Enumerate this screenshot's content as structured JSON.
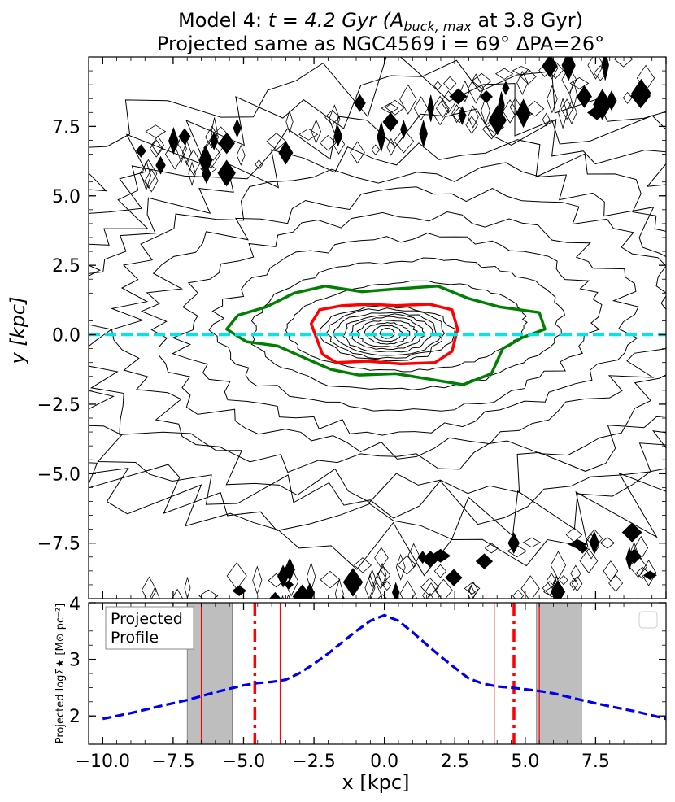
{
  "chart_data": [
    {
      "type": "contour",
      "title_line1_prefix": "Model 4: ",
      "title_line1_math": "t = 4.2 Gyr (A",
      "title_line1_sub": "buck, max",
      "title_line1_suffix": " at 3.8 Gyr)",
      "title_line2": "Projected same as NGC4569 i = 69° ΔPA=26°",
      "xlabel": "",
      "ylabel": "y [kpc]",
      "xlim": [
        -10.5,
        10.0
      ],
      "ylim": [
        -9.5,
        10.0
      ],
      "yticks": [
        -7.5,
        -5.0,
        -2.5,
        0.0,
        2.5,
        5.0,
        7.5
      ],
      "ytick_labels": [
        "−7.5",
        "−5.0",
        "−2.5",
        "0.0",
        "2.5",
        "5.0",
        "7.5"
      ],
      "reference_line": {
        "axis": "y",
        "value": 0.0,
        "color": "#00e5e5",
        "style": "dashed"
      },
      "contours": {
        "inner_count": 9,
        "outer_count": 10,
        "highlight_red": {
          "color": "#ff0000",
          "note_shape": [
            [
              -2.6,
              0.4
            ],
            [
              -2.3,
              0.9
            ],
            [
              -1.5,
              1.05
            ],
            [
              -0.5,
              1.1
            ],
            [
              0.4,
              1.05
            ],
            [
              1.6,
              1.1
            ],
            [
              2.4,
              0.9
            ],
            [
              2.6,
              0.2
            ],
            [
              2.4,
              -0.6
            ],
            [
              1.8,
              -1.0
            ],
            [
              0.6,
              -1.05
            ],
            [
              -0.6,
              -0.95
            ],
            [
              -1.7,
              -1.0
            ],
            [
              -2.2,
              -0.7
            ]
          ]
        },
        "highlight_green": {
          "color": "#008000",
          "note_shape": [
            [
              -5.6,
              0.2
            ],
            [
              -5.2,
              0.7
            ],
            [
              -4.2,
              1.0
            ],
            [
              -3.2,
              1.5
            ],
            [
              -2.1,
              1.75
            ],
            [
              -0.8,
              1.55
            ],
            [
              0.4,
              1.65
            ],
            [
              1.9,
              1.75
            ],
            [
              3.0,
              1.3
            ],
            [
              4.1,
              1.0
            ],
            [
              5.5,
              0.8
            ],
            [
              5.7,
              0.2
            ],
            [
              4.9,
              -0.1
            ],
            [
              4.2,
              -0.5
            ],
            [
              3.8,
              -1.4
            ],
            [
              2.8,
              -1.8
            ],
            [
              1.6,
              -1.6
            ],
            [
              0.4,
              -1.4
            ],
            [
              -0.9,
              -1.45
            ],
            [
              -1.9,
              -1.25
            ],
            [
              -3.8,
              -0.4
            ],
            [
              -4.9,
              -0.25
            ]
          ]
        }
      }
    },
    {
      "type": "line",
      "annotation_line1": "Projected",
      "annotation_line2": "Profile",
      "xlabel": "x [kpc]",
      "ylabel": "Projected logΣ★ [M⊙ pc⁻²]",
      "xlim": [
        -10.5,
        10.0
      ],
      "ylim": [
        1.5,
        4.0
      ],
      "xticks": [
        -10.0,
        -7.5,
        -5.0,
        -2.5,
        0.0,
        2.5,
        5.0,
        7.5
      ],
      "xtick_labels": [
        "−10.0",
        "−7.5",
        "−5.0",
        "−2.5",
        "0.0",
        "2.5",
        "5.0",
        "7.5"
      ],
      "yticks": [
        2,
        3,
        4
      ],
      "ytick_labels": [
        "2",
        "3",
        "4"
      ],
      "series": [
        {
          "color": "#0000ee",
          "style": "dashed",
          "x": [
            -10.0,
            -9.0,
            -8.0,
            -7.0,
            -6.0,
            -5.0,
            -4.5,
            -4.0,
            -3.5,
            -3.0,
            -2.5,
            -2.0,
            -1.5,
            -1.0,
            -0.5,
            0.0,
            0.5,
            1.0,
            1.5,
            2.0,
            2.5,
            3.0,
            3.5,
            4.0,
            4.5,
            5.0,
            5.5,
            6.0,
            7.0,
            8.0,
            9.0,
            10.0
          ],
          "y": [
            1.95,
            2.05,
            2.17,
            2.28,
            2.42,
            2.54,
            2.58,
            2.6,
            2.64,
            2.76,
            2.92,
            3.1,
            3.3,
            3.5,
            3.68,
            3.78,
            3.68,
            3.48,
            3.26,
            3.05,
            2.85,
            2.66,
            2.57,
            2.52,
            2.5,
            2.47,
            2.44,
            2.4,
            2.28,
            2.17,
            2.07,
            1.95
          ]
        }
      ],
      "shaded_bands": [
        {
          "x0": -7.0,
          "x1": -5.4,
          "color": "#bebebe"
        },
        {
          "x0": 5.4,
          "x1": 7.0,
          "color": "#bebebe"
        }
      ],
      "vertical_lines": [
        {
          "x": -6.5,
          "color": "#ff0000",
          "style": "solid-thin"
        },
        {
          "x": -4.6,
          "color": "#ff0000",
          "style": "dashdot-thick"
        },
        {
          "x": -3.7,
          "color": "#ff0000",
          "style": "solid-thin"
        },
        {
          "x": 3.9,
          "color": "#ff0000",
          "style": "solid-thin"
        },
        {
          "x": 4.6,
          "color": "#ff0000",
          "style": "dashdot-thick"
        },
        {
          "x": 5.5,
          "color": "#ff0000",
          "style": "solid-thin"
        }
      ]
    }
  ]
}
